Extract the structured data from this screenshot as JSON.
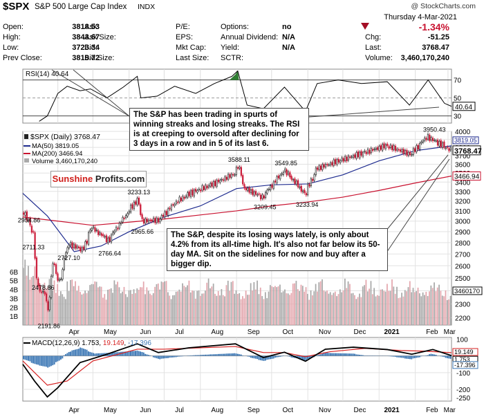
{
  "header": {
    "symbol": "$SPX",
    "name": "S&P 500 Large Cap Index",
    "exchange": "INDX",
    "copyright": "@ StockCharts.com",
    "date": "Thursday  4-Mar-2021",
    "fields": [
      {
        "label": "Open:",
        "value": "3818.53"
      },
      {
        "label": "High:",
        "value": "3843.67"
      },
      {
        "label": "Low:",
        "value": "3723.34"
      },
      {
        "label": "Prev Close:",
        "value": "3819.72"
      },
      {
        "label": "Ask:",
        "value": ""
      },
      {
        "label": "Ask Size:",
        "value": ""
      },
      {
        "label": "Bid:",
        "value": ""
      },
      {
        "label": "Bid Size:",
        "value": ""
      },
      {
        "label": "P/E:",
        "value": ""
      },
      {
        "label": "EPS:",
        "value": ""
      },
      {
        "label": "Mkt Cap:",
        "value": ""
      },
      {
        "label": "Last Size:",
        "value": ""
      },
      {
        "label": "Options:",
        "value": "no"
      },
      {
        "label": "Annual Dividend:",
        "value": "N/A"
      },
      {
        "label": "Yield:",
        "value": "N/A"
      },
      {
        "label": "SCTR:",
        "value": ""
      }
    ],
    "pct_change": "-1.34%",
    "chg_label": "Chg:",
    "chg_value": "-51.25",
    "last_label": "Last:",
    "last_value": "3768.47",
    "volume_label": "Volume:",
    "volume_value": "3,460,170,240"
  },
  "annotations": {
    "rsi_note": "The S&P has been trading in spurts of winning streaks and losing streaks. The RSI is at creeping to oversold after declining for 3 days in a row and in 5 of its last 6.",
    "price_note": "The S&P, despite its losing ways lately, is only about 4.2% from its all-time high. It's also not far below its 50-day MA. Sit on the sidelines for now and buy after a bigger dip.",
    "logo_part1": "Sunshine",
    "logo_part2": "Profits.com"
  },
  "colors": {
    "price_up": "#222222",
    "price_down": "#cc1f3c",
    "ma50": "#1d2a8e",
    "ma200": "#c8102e",
    "volume_up": "#a8a8a8",
    "volume_down": "#e4a6ad",
    "rsi_line": "#000000",
    "rsi_fill": "#2f7d32",
    "macd_line": "#000000",
    "signal_line": "#d61f1f",
    "histogram": "#3d78b5",
    "down_arrow": "#a40e25"
  },
  "chart_data": [
    {
      "type": "line",
      "panel": "RSI",
      "title": "RSI(14) 40.64",
      "y_ticks": [
        70,
        50,
        40.64,
        30
      ],
      "ylim": [
        22,
        82
      ],
      "grid": true,
      "x": [
        "2020-03-16",
        "2020-03-23",
        "2020-04-01",
        "2020-04-09",
        "2020-04-20",
        "2020-04-29",
        "2020-05-13",
        "2020-05-27",
        "2020-06-08",
        "2020-06-11",
        "2020-06-25",
        "2020-07-10",
        "2020-07-28",
        "2020-08-13",
        "2020-08-28",
        "2020-09-02",
        "2020-09-10",
        "2020-09-24",
        "2020-10-12",
        "2020-10-30",
        "2020-11-09",
        "2020-11-27",
        "2020-12-17",
        "2021-01-08",
        "2021-01-27",
        "2021-02-12",
        "2021-02-26",
        "2021-03-04"
      ],
      "y": [
        24,
        30,
        55,
        63,
        58,
        60,
        50,
        62,
        74,
        50,
        52,
        63,
        55,
        66,
        74,
        80,
        42,
        38,
        62,
        35,
        66,
        70,
        66,
        68,
        42,
        70,
        44,
        40.64
      ]
    },
    {
      "type": "candlestick",
      "panel": "Price",
      "title": "$SPX (Daily) 3768.47",
      "legend": [
        "MA(50) 3819.05",
        "MA(200) 3466.94",
        "Volume 3,460,170,240"
      ],
      "x_ticks": [
        "Apr",
        "May",
        "Jun",
        "Jul",
        "Aug",
        "Sep",
        "Oct",
        "Nov",
        "Dec",
        "2021",
        "Feb",
        "Mar"
      ],
      "y_ticks": [
        2200,
        2300,
        2400,
        2500,
        2600,
        2700,
        2800,
        2900,
        3000,
        3100,
        3200,
        3300,
        3400,
        3500,
        3600,
        3700,
        3800,
        3900,
        4000
      ],
      "ylim": [
        2150,
        4000
      ],
      "y_scale": "log",
      "grid": true,
      "price_labels": [
        {
          "date": "2020-03-06",
          "value": 2954.86
        },
        {
          "date": "2020-03-10",
          "value": 2711.33
        },
        {
          "date": "2020-03-18",
          "value": 2478.86
        },
        {
          "date": "2020-03-23",
          "value": 2191.86
        },
        {
          "date": "2020-04-09",
          "value": 2727.1
        },
        {
          "date": "2020-05-14",
          "value": 2766.64
        },
        {
          "date": "2020-06-08",
          "value": 3233.13
        },
        {
          "date": "2020-06-11",
          "value": 2965.66
        },
        {
          "date": "2020-09-02",
          "value": 3588.11
        },
        {
          "date": "2020-09-24",
          "value": 3209.45
        },
        {
          "date": "2020-10-12",
          "value": 3549.85
        },
        {
          "date": "2020-10-30",
          "value": 3233.94
        },
        {
          "date": "2021-02-16",
          "value": 3950.43
        }
      ],
      "right_labels": [
        "3819.05",
        "3768.47",
        "3466.94"
      ],
      "close_series": {
        "x": [
          "2020-03-02",
          "2020-03-06",
          "2020-03-10",
          "2020-03-12",
          "2020-03-16",
          "2020-03-18",
          "2020-03-23",
          "2020-03-26",
          "2020-04-01",
          "2020-04-09",
          "2020-04-21",
          "2020-04-29",
          "2020-05-13",
          "2020-05-27",
          "2020-06-08",
          "2020-06-11",
          "2020-06-26",
          "2020-07-10",
          "2020-07-22",
          "2020-08-12",
          "2020-08-31",
          "2020-09-02",
          "2020-09-08",
          "2020-09-23",
          "2020-10-12",
          "2020-10-30",
          "2020-11-09",
          "2020-11-27",
          "2020-12-17",
          "2021-01-08",
          "2021-01-29",
          "2021-02-12",
          "2021-02-25",
          "2021-03-04"
        ],
        "y": [
          3090,
          2972,
          2882,
          2480,
          2386,
          2398,
          2237,
          2630,
          2470,
          2790,
          2737,
          2939,
          2820,
          3036,
          3232,
          3002,
          3009,
          3185,
          3276,
          3380,
          3500,
          3580,
          3331,
          3237,
          3534,
          3270,
          3550,
          3638,
          3722,
          3824,
          3714,
          3934,
          3829,
          3768.47
        ]
      },
      "ma50": {
        "x": [
          "2020-03-02",
          "2020-03-23",
          "2020-04-15",
          "2020-05-08",
          "2020-06-01",
          "2020-07-01",
          "2020-08-01",
          "2020-09-01",
          "2020-10-01",
          "2020-11-01",
          "2020-12-01",
          "2021-01-01",
          "2021-02-01",
          "2021-03-04"
        ],
        "y": [
          3280,
          3050,
          2720,
          2770,
          2900,
          3040,
          3150,
          3330,
          3370,
          3380,
          3480,
          3640,
          3760,
          3819.05
        ]
      },
      "ma200": {
        "x": [
          "2020-03-02",
          "2020-04-01",
          "2020-05-01",
          "2020-06-01",
          "2020-07-01",
          "2020-08-01",
          "2020-09-01",
          "2020-10-01",
          "2020-11-01",
          "2020-12-01",
          "2021-01-01",
          "2021-02-01",
          "2021-03-04"
        ],
        "y": [
          3040,
          3000,
          2960,
          2990,
          3020,
          3060,
          3100,
          3150,
          3190,
          3240,
          3310,
          3390,
          3466.94
        ]
      }
    },
    {
      "type": "bar",
      "panel": "Volume",
      "y_ticks": [
        "1B",
        "2B",
        "3B",
        "4B",
        "5B",
        "6B"
      ],
      "right_label": "3460170"
    },
    {
      "type": "line",
      "panel": "MACD",
      "title": "MACD(12,26,9) 1.753, 19.149, -17.396",
      "series": [
        {
          "name": "MACD",
          "x": [
            "2020-03-02",
            "2020-03-12",
            "2020-03-23",
            "2020-04-01",
            "2020-04-20",
            "2020-05-13",
            "2020-06-08",
            "2020-06-26",
            "2020-07-22",
            "2020-08-31",
            "2020-09-24",
            "2020-10-12",
            "2020-10-30",
            "2020-11-16",
            "2020-12-10",
            "2021-01-08",
            "2021-01-29",
            "2021-02-16",
            "2021-03-04"
          ],
          "y": [
            -50,
            -150,
            -245,
            -190,
            -40,
            10,
            72,
            20,
            48,
            72,
            -10,
            22,
            -32,
            40,
            52,
            38,
            10,
            38,
            1.753
          ]
        },
        {
          "name": "Signal",
          "x": [
            "2020-03-02",
            "2020-03-23",
            "2020-04-09",
            "2020-05-01",
            "2020-06-08",
            "2020-07-01",
            "2020-08-31",
            "2020-09-24",
            "2020-10-12",
            "2020-10-30",
            "2020-11-20",
            "2020-12-20",
            "2021-01-20",
            "2021-02-10",
            "2021-03-04"
          ],
          "y": [
            -30,
            -175,
            -150,
            -30,
            40,
            40,
            56,
            20,
            20,
            -5,
            25,
            45,
            32,
            28,
            19.149
          ]
        },
        {
          "name": "Histogram",
          "value_last": -17.396
        }
      ],
      "y_ticks": [
        100,
        0,
        -100,
        -200,
        -250
      ],
      "ylim": [
        -270,
        110
      ],
      "right_labels": [
        "19.149",
        "1.753",
        "-17.396"
      ],
      "x_ticks": [
        "Apr",
        "May",
        "Jun",
        "Jul",
        "Aug",
        "Sep",
        "Oct",
        "Nov",
        "Dec",
        "2021",
        "Feb",
        "Mar"
      ]
    }
  ]
}
